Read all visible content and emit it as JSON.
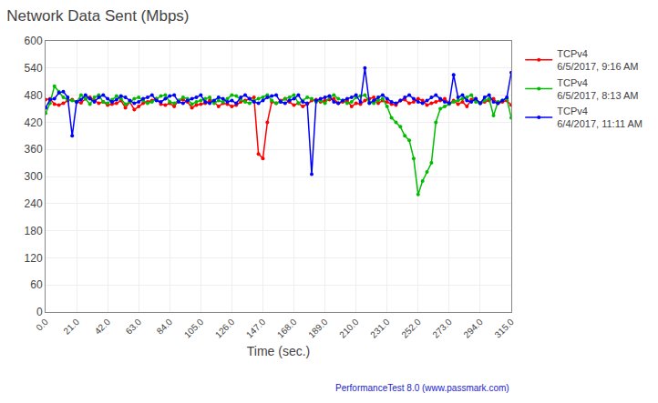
{
  "chart_data": {
    "type": "line",
    "title": "Network Data Sent (Mbps)",
    "xlabel": "Time (sec.)",
    "watermark": "PerformanceTest 8.0 (www.passmark.com)",
    "xlim": [
      0,
      315
    ],
    "ylim": [
      0,
      600
    ],
    "xticks": [
      {
        "value": 0,
        "label": "0.0"
      },
      {
        "value": 21,
        "label": "21.0"
      },
      {
        "value": 42,
        "label": "42.0"
      },
      {
        "value": 63,
        "label": "63.0"
      },
      {
        "value": 84,
        "label": "84.0"
      },
      {
        "value": 105,
        "label": "105.0"
      },
      {
        "value": 126,
        "label": "126.0"
      },
      {
        "value": 147,
        "label": "147.0"
      },
      {
        "value": 168,
        "label": "168.0"
      },
      {
        "value": 189,
        "label": "189.0"
      },
      {
        "value": 210,
        "label": "210.0"
      },
      {
        "value": 231,
        "label": "231.0"
      },
      {
        "value": 252,
        "label": "252.0"
      },
      {
        "value": 273,
        "label": "273.0"
      },
      {
        "value": 294,
        "label": "294.0"
      },
      {
        "value": 315,
        "label": "315.0"
      }
    ],
    "yticks": [
      0,
      60,
      120,
      180,
      240,
      300,
      360,
      420,
      480,
      540,
      600
    ],
    "grid": true,
    "legend": "right",
    "marker": "circle",
    "line_style": "solid",
    "x": [
      0,
      3,
      6,
      9,
      12,
      15,
      18,
      21,
      24,
      27,
      30,
      33,
      36,
      39,
      42,
      45,
      48,
      51,
      54,
      57,
      60,
      63,
      66,
      69,
      72,
      75,
      78,
      81,
      84,
      87,
      90,
      93,
      96,
      99,
      102,
      105,
      108,
      111,
      114,
      117,
      120,
      123,
      126,
      129,
      132,
      135,
      138,
      141,
      144,
      147,
      150,
      153,
      156,
      159,
      162,
      165,
      168,
      171,
      174,
      177,
      180,
      183,
      186,
      189,
      192,
      195,
      198,
      201,
      204,
      207,
      210,
      213,
      216,
      219,
      222,
      225,
      228,
      231,
      234,
      237,
      240,
      243,
      246,
      249,
      252,
      255,
      258,
      261,
      264,
      267,
      270,
      273,
      276,
      279,
      282,
      285,
      288,
      291,
      294,
      297,
      300,
      303,
      306,
      309,
      312,
      315
    ],
    "series": [
      {
        "name": "TCPv4",
        "date": "6/5/2017, 9:16 AM",
        "color": "#ff0000",
        "values": [
          470,
          472,
          460,
          458,
          462,
          468,
          470,
          465,
          463,
          472,
          475,
          468,
          462,
          465,
          458,
          460,
          462,
          468,
          452,
          465,
          448,
          455,
          462,
          465,
          468,
          472,
          460,
          458,
          462,
          455,
          468,
          470,
          465,
          452,
          458,
          460,
          462,
          468,
          465,
          455,
          462,
          460,
          455,
          458,
          465,
          468,
          472,
          475,
          350,
          340,
          420,
          465,
          462,
          468,
          472,
          465,
          458,
          462,
          455,
          460,
          468,
          470,
          465,
          468,
          470,
          472,
          462,
          465,
          468,
          455,
          462,
          460,
          468,
          472,
          475,
          462,
          468,
          465,
          460,
          458,
          468,
          470,
          462,
          465,
          472,
          468,
          458,
          462,
          465,
          468,
          472,
          462,
          468,
          460,
          465,
          455,
          470,
          472,
          462,
          465,
          468,
          472,
          462,
          465,
          468,
          458
        ]
      },
      {
        "name": "TCPv4",
        "date": "6/5/2017, 8:13 AM",
        "color": "#00bb00",
        "values": [
          440,
          462,
          500,
          488,
          475,
          470,
          468,
          465,
          480,
          472,
          460,
          475,
          480,
          465,
          462,
          470,
          478,
          472,
          460,
          465,
          472,
          475,
          468,
          462,
          465,
          472,
          478,
          480,
          465,
          462,
          468,
          475,
          472,
          460,
          465,
          468,
          472,
          475,
          462,
          468,
          465,
          472,
          480,
          478,
          470,
          465,
          462,
          468,
          472,
          475,
          480,
          468,
          462,
          465,
          472,
          475,
          480,
          462,
          468,
          475,
          472,
          465,
          468,
          462,
          475,
          480,
          472,
          468,
          462,
          465,
          475,
          478,
          480,
          465,
          462,
          468,
          472,
          455,
          430,
          420,
          410,
          390,
          380,
          340,
          260,
          290,
          310,
          330,
          420,
          450,
          455,
          460,
          465,
          468,
          472,
          475,
          480,
          465,
          462,
          468,
          472,
          435,
          465,
          468,
          472,
          430
        ]
      },
      {
        "name": "TCPv4",
        "date": "6/4/2017, 11:11 AM",
        "color": "#0000ff",
        "values": [
          452,
          470,
          472,
          485,
          488,
          475,
          390,
          465,
          470,
          480,
          472,
          465,
          475,
          480,
          472,
          465,
          470,
          478,
          475,
          468,
          462,
          465,
          472,
          475,
          480,
          468,
          465,
          472,
          478,
          480,
          465,
          462,
          468,
          472,
          475,
          480,
          465,
          462,
          468,
          475,
          472,
          465,
          468,
          462,
          475,
          480,
          472,
          465,
          462,
          468,
          475,
          478,
          480,
          465,
          462,
          468,
          472,
          480,
          465,
          462,
          305,
          468,
          472,
          475,
          478,
          465,
          462,
          468,
          472,
          475,
          480,
          465,
          540,
          462,
          468,
          475,
          480,
          472,
          465,
          462,
          468,
          475,
          480,
          472,
          465,
          462,
          468,
          475,
          480,
          472,
          465,
          462,
          525,
          475,
          480,
          468,
          465,
          472,
          462,
          475,
          480,
          465,
          462,
          468,
          475,
          530
        ]
      }
    ]
  }
}
